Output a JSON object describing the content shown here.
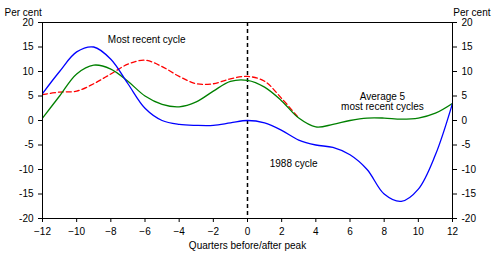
{
  "chart_data": {
    "type": "line",
    "x_label": "Quarters before/after peak",
    "y_label": "Per cent",
    "y2_label": "Per cent",
    "x": [
      -12,
      -11,
      -10,
      -9,
      -8,
      -7,
      -6,
      -5,
      -4,
      -3,
      -2,
      -1,
      0,
      1,
      2,
      3,
      4,
      5,
      6,
      7,
      8,
      9,
      10,
      11,
      12
    ],
    "series": [
      {
        "name": "Most recent cycle",
        "color": "#ff0000",
        "line_style": "dashed",
        "values": [
          5.3,
          5.8,
          6,
          7.5,
          9.5,
          11.5,
          12.3,
          11,
          9,
          7.5,
          7.5,
          8.5,
          9,
          8,
          4.5,
          0.5,
          null,
          null,
          null,
          null,
          null,
          null,
          null,
          null,
          null
        ]
      },
      {
        "name": "Average 5\nmost recent cycles",
        "color": "#008000",
        "line_style": "solid",
        "values": [
          0.5,
          5,
          9.5,
          11.3,
          10.5,
          8,
          5,
          3.3,
          2.8,
          3.8,
          6,
          8,
          8.2,
          6.8,
          4,
          0.5,
          -1.3,
          -0.8,
          0,
          0.5,
          0.5,
          0.3,
          0.5,
          1.5,
          3.5
        ]
      },
      {
        "name": "1988 cycle",
        "color": "#0000ff",
        "line_style": "solid",
        "values": [
          5.5,
          10,
          14,
          15,
          12.5,
          7.5,
          2.5,
          0,
          -0.8,
          -1,
          -1,
          -0.5,
          0,
          -0.5,
          -2,
          -4,
          -5,
          -5.5,
          -7,
          -10,
          -15,
          -16.5,
          -14,
          -7,
          3.5
        ]
      }
    ],
    "vline": 0,
    "xlim": [
      -12,
      12
    ],
    "xticks": [
      -12,
      -10,
      -8,
      -6,
      -4,
      -2,
      0,
      2,
      4,
      6,
      8,
      10,
      12
    ],
    "ylim": [
      -20,
      20
    ],
    "yticks": [
      -20,
      -15,
      -10,
      -5,
      0,
      5,
      10,
      15,
      20
    ],
    "y2lim": [
      -20,
      20
    ],
    "y2ticks": [
      -20,
      -15,
      -10,
      -5,
      0,
      5,
      10,
      15,
      20
    ],
    "grid": false
  }
}
